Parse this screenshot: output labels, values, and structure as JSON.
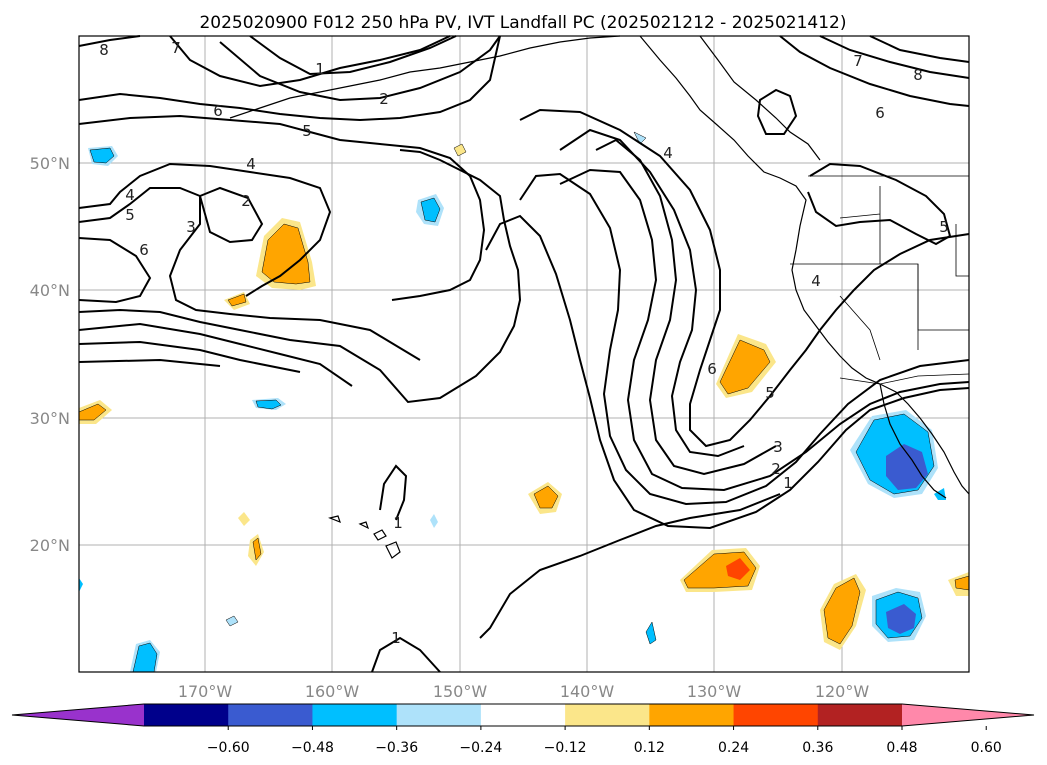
{
  "title": "2025020900 F012 250 hPa PV, IVT Landfall PC (2025021212 - 2025021412)",
  "lat_labels": [
    "50°N",
    "40°N",
    "30°N",
    "20°N"
  ],
  "lon_labels": [
    "170°W",
    "160°W",
    "150°W",
    "140°W",
    "130°W",
    "120°W"
  ],
  "contour_labels": [
    "8",
    "7",
    "1",
    "2",
    "6",
    "5",
    "4",
    "2",
    "3",
    "4",
    "5",
    "6",
    "7",
    "8",
    "6",
    "4",
    "6",
    "5",
    "3",
    "2",
    "1",
    "1",
    "1",
    "5",
    "4"
  ],
  "colorbar": {
    "ticks": [
      "−0.60",
      "−0.48",
      "−0.36",
      "−0.24",
      "−0.12",
      "0.12",
      "0.24",
      "0.36",
      "0.48",
      "0.60"
    ],
    "colors": [
      "#9932cc",
      "#00008b",
      "#3a5bd0",
      "#00bfff",
      "#aee2fa",
      "#ffffff",
      "#fbe68a",
      "#ffa500",
      "#ff4500",
      "#b22222",
      "#ff88aa"
    ]
  }
}
